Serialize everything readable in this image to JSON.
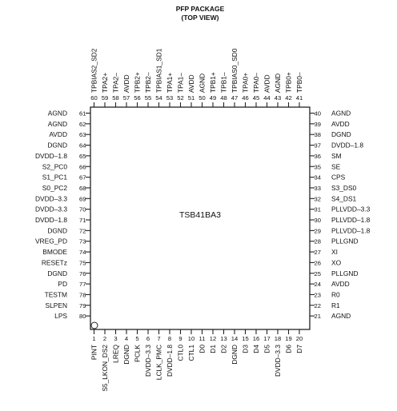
{
  "package": {
    "title": "PFP PACKAGE",
    "subtitle": "(TOP VIEW)",
    "chip_name": "TSB41BA3"
  },
  "pins": {
    "left": [
      {
        "num": "61",
        "name": "AGND"
      },
      {
        "num": "62",
        "name": "AGND"
      },
      {
        "num": "63",
        "name": "AVDD"
      },
      {
        "num": "64",
        "name": "DGND"
      },
      {
        "num": "65",
        "name": "DVDD–1.8"
      },
      {
        "num": "66",
        "name": "S2_PC0"
      },
      {
        "num": "67",
        "name": "S1_PC1"
      },
      {
        "num": "68",
        "name": "S0_PC2"
      },
      {
        "num": "69",
        "name": "DVDD–3.3"
      },
      {
        "num": "70",
        "name": "DVDD–3.3"
      },
      {
        "num": "71",
        "name": "DVDD–1.8"
      },
      {
        "num": "72",
        "name": "DGND"
      },
      {
        "num": "73",
        "name": "VREG_PD"
      },
      {
        "num": "74",
        "name": "BMODE"
      },
      {
        "num": "75",
        "name": "RESETz"
      },
      {
        "num": "76",
        "name": "DGND"
      },
      {
        "num": "77",
        "name": "PD"
      },
      {
        "num": "78",
        "name": "TESTM"
      },
      {
        "num": "79",
        "name": "SLPEN"
      },
      {
        "num": "80",
        "name": "LPS"
      }
    ],
    "right": [
      {
        "num": "40",
        "name": "AGND"
      },
      {
        "num": "39",
        "name": "AVDD"
      },
      {
        "num": "38",
        "name": "DGND"
      },
      {
        "num": "37",
        "name": "DVDD–1.8"
      },
      {
        "num": "36",
        "name": "SM"
      },
      {
        "num": "35",
        "name": "SE"
      },
      {
        "num": "34",
        "name": "CPS"
      },
      {
        "num": "33",
        "name": "S3_DS0"
      },
      {
        "num": "32",
        "name": "S4_DS1"
      },
      {
        "num": "31",
        "name": "PLLVDD–3.3"
      },
      {
        "num": "30",
        "name": "PLLVDD–1.8"
      },
      {
        "num": "29",
        "name": "PLLVDD–1.8"
      },
      {
        "num": "28",
        "name": "PLLGND"
      },
      {
        "num": "27",
        "name": "XI"
      },
      {
        "num": "26",
        "name": "XO"
      },
      {
        "num": "25",
        "name": "PLLGND"
      },
      {
        "num": "24",
        "name": "AVDD"
      },
      {
        "num": "23",
        "name": "R0"
      },
      {
        "num": "22",
        "name": "R1"
      },
      {
        "num": "21",
        "name": "AGND"
      }
    ],
    "top": [
      {
        "num": "60",
        "name": "TPBIAS2_SD2"
      },
      {
        "num": "59",
        "name": "TPA2+"
      },
      {
        "num": "58",
        "name": "TPA2–"
      },
      {
        "num": "57",
        "name": "AVDD"
      },
      {
        "num": "56",
        "name": "TPB2+"
      },
      {
        "num": "55",
        "name": "TPB2–"
      },
      {
        "num": "54",
        "name": "TPBIAS1_SD1"
      },
      {
        "num": "53",
        "name": "TPA1+"
      },
      {
        "num": "52",
        "name": "TPA1–"
      },
      {
        "num": "51",
        "name": "AVDD"
      },
      {
        "num": "50",
        "name": "AGND"
      },
      {
        "num": "49",
        "name": "TPB1+"
      },
      {
        "num": "48",
        "name": "TPB1–"
      },
      {
        "num": "47",
        "name": "TPBIAS0_SD0"
      },
      {
        "num": "46",
        "name": "TPA0+"
      },
      {
        "num": "45",
        "name": "TPA0–"
      },
      {
        "num": "44",
        "name": "AVDD"
      },
      {
        "num": "43",
        "name": "AGND"
      },
      {
        "num": "42",
        "name": "TPB0+"
      },
      {
        "num": "41",
        "name": "TPB0–"
      }
    ],
    "bottom": [
      {
        "num": "1",
        "name": "PINT"
      },
      {
        "num": "2",
        "name": "S5_LKON_DS2"
      },
      {
        "num": "3",
        "name": "LREQ"
      },
      {
        "num": "4",
        "name": "DGND"
      },
      {
        "num": "5",
        "name": "PCLK"
      },
      {
        "num": "6",
        "name": "DVDD–3.3"
      },
      {
        "num": "7",
        "name": "LCLK_PMC"
      },
      {
        "num": "8",
        "name": "DVDD–1.8"
      },
      {
        "num": "9",
        "name": "CTL0"
      },
      {
        "num": "10",
        "name": "CTL1"
      },
      {
        "num": "11",
        "name": "D0"
      },
      {
        "num": "12",
        "name": "D1"
      },
      {
        "num": "13",
        "name": "D2"
      },
      {
        "num": "14",
        "name": "DGND"
      },
      {
        "num": "15",
        "name": "D3"
      },
      {
        "num": "16",
        "name": "D4"
      },
      {
        "num": "17",
        "name": "D5"
      },
      {
        "num": "18",
        "name": "DVDD–3.3"
      },
      {
        "num": "19",
        "name": "D6"
      },
      {
        "num": "20",
        "name": "D7"
      }
    ]
  }
}
